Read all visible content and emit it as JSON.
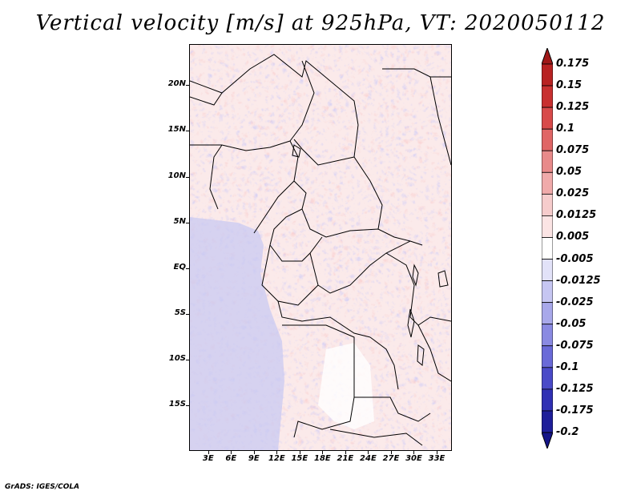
{
  "title": "Vertical velocity [m/s] at 925hPa, VT: 2020050112",
  "credit": "GrADS: IGES/COLA",
  "map": {
    "lat_labels": [
      "20N",
      "15N",
      "10N",
      "5N",
      "EQ",
      "5S",
      "10S",
      "15S"
    ],
    "lat_values": [
      20,
      15,
      10,
      5,
      0,
      -5,
      -10,
      -15
    ],
    "lon_labels": [
      "3E",
      "6E",
      "9E",
      "12E",
      "15E",
      "18E",
      "21E",
      "24E",
      "27E",
      "30E",
      "33E"
    ],
    "lon_values": [
      3,
      6,
      9,
      12,
      15,
      18,
      21,
      24,
      27,
      30,
      33
    ],
    "lon_range": [
      0.5,
      35
    ],
    "lat_range": [
      -20,
      24.5
    ]
  },
  "colorbar": {
    "labels": [
      "0.175",
      "0.15",
      "0.125",
      "0.1",
      "0.075",
      "0.05",
      "0.025",
      "0.0125",
      "0.005",
      "-0.005",
      "-0.0125",
      "-0.025",
      "-0.05",
      "-0.075",
      "-0.1",
      "-0.125",
      "-0.175",
      "-0.2"
    ],
    "colors": [
      "#a01818",
      "#b82222",
      "#c83030",
      "#d84a4a",
      "#e06666",
      "#e88a8a",
      "#f0aaaa",
      "#f6cccc",
      "#fbe4e4",
      "#ffffff",
      "#e2e2f8",
      "#c6c6f2",
      "#a8a8ea",
      "#8a8ae2",
      "#6a6ad8",
      "#4a4ac8",
      "#3030b4",
      "#1e1e9a",
      "#141488"
    ]
  }
}
